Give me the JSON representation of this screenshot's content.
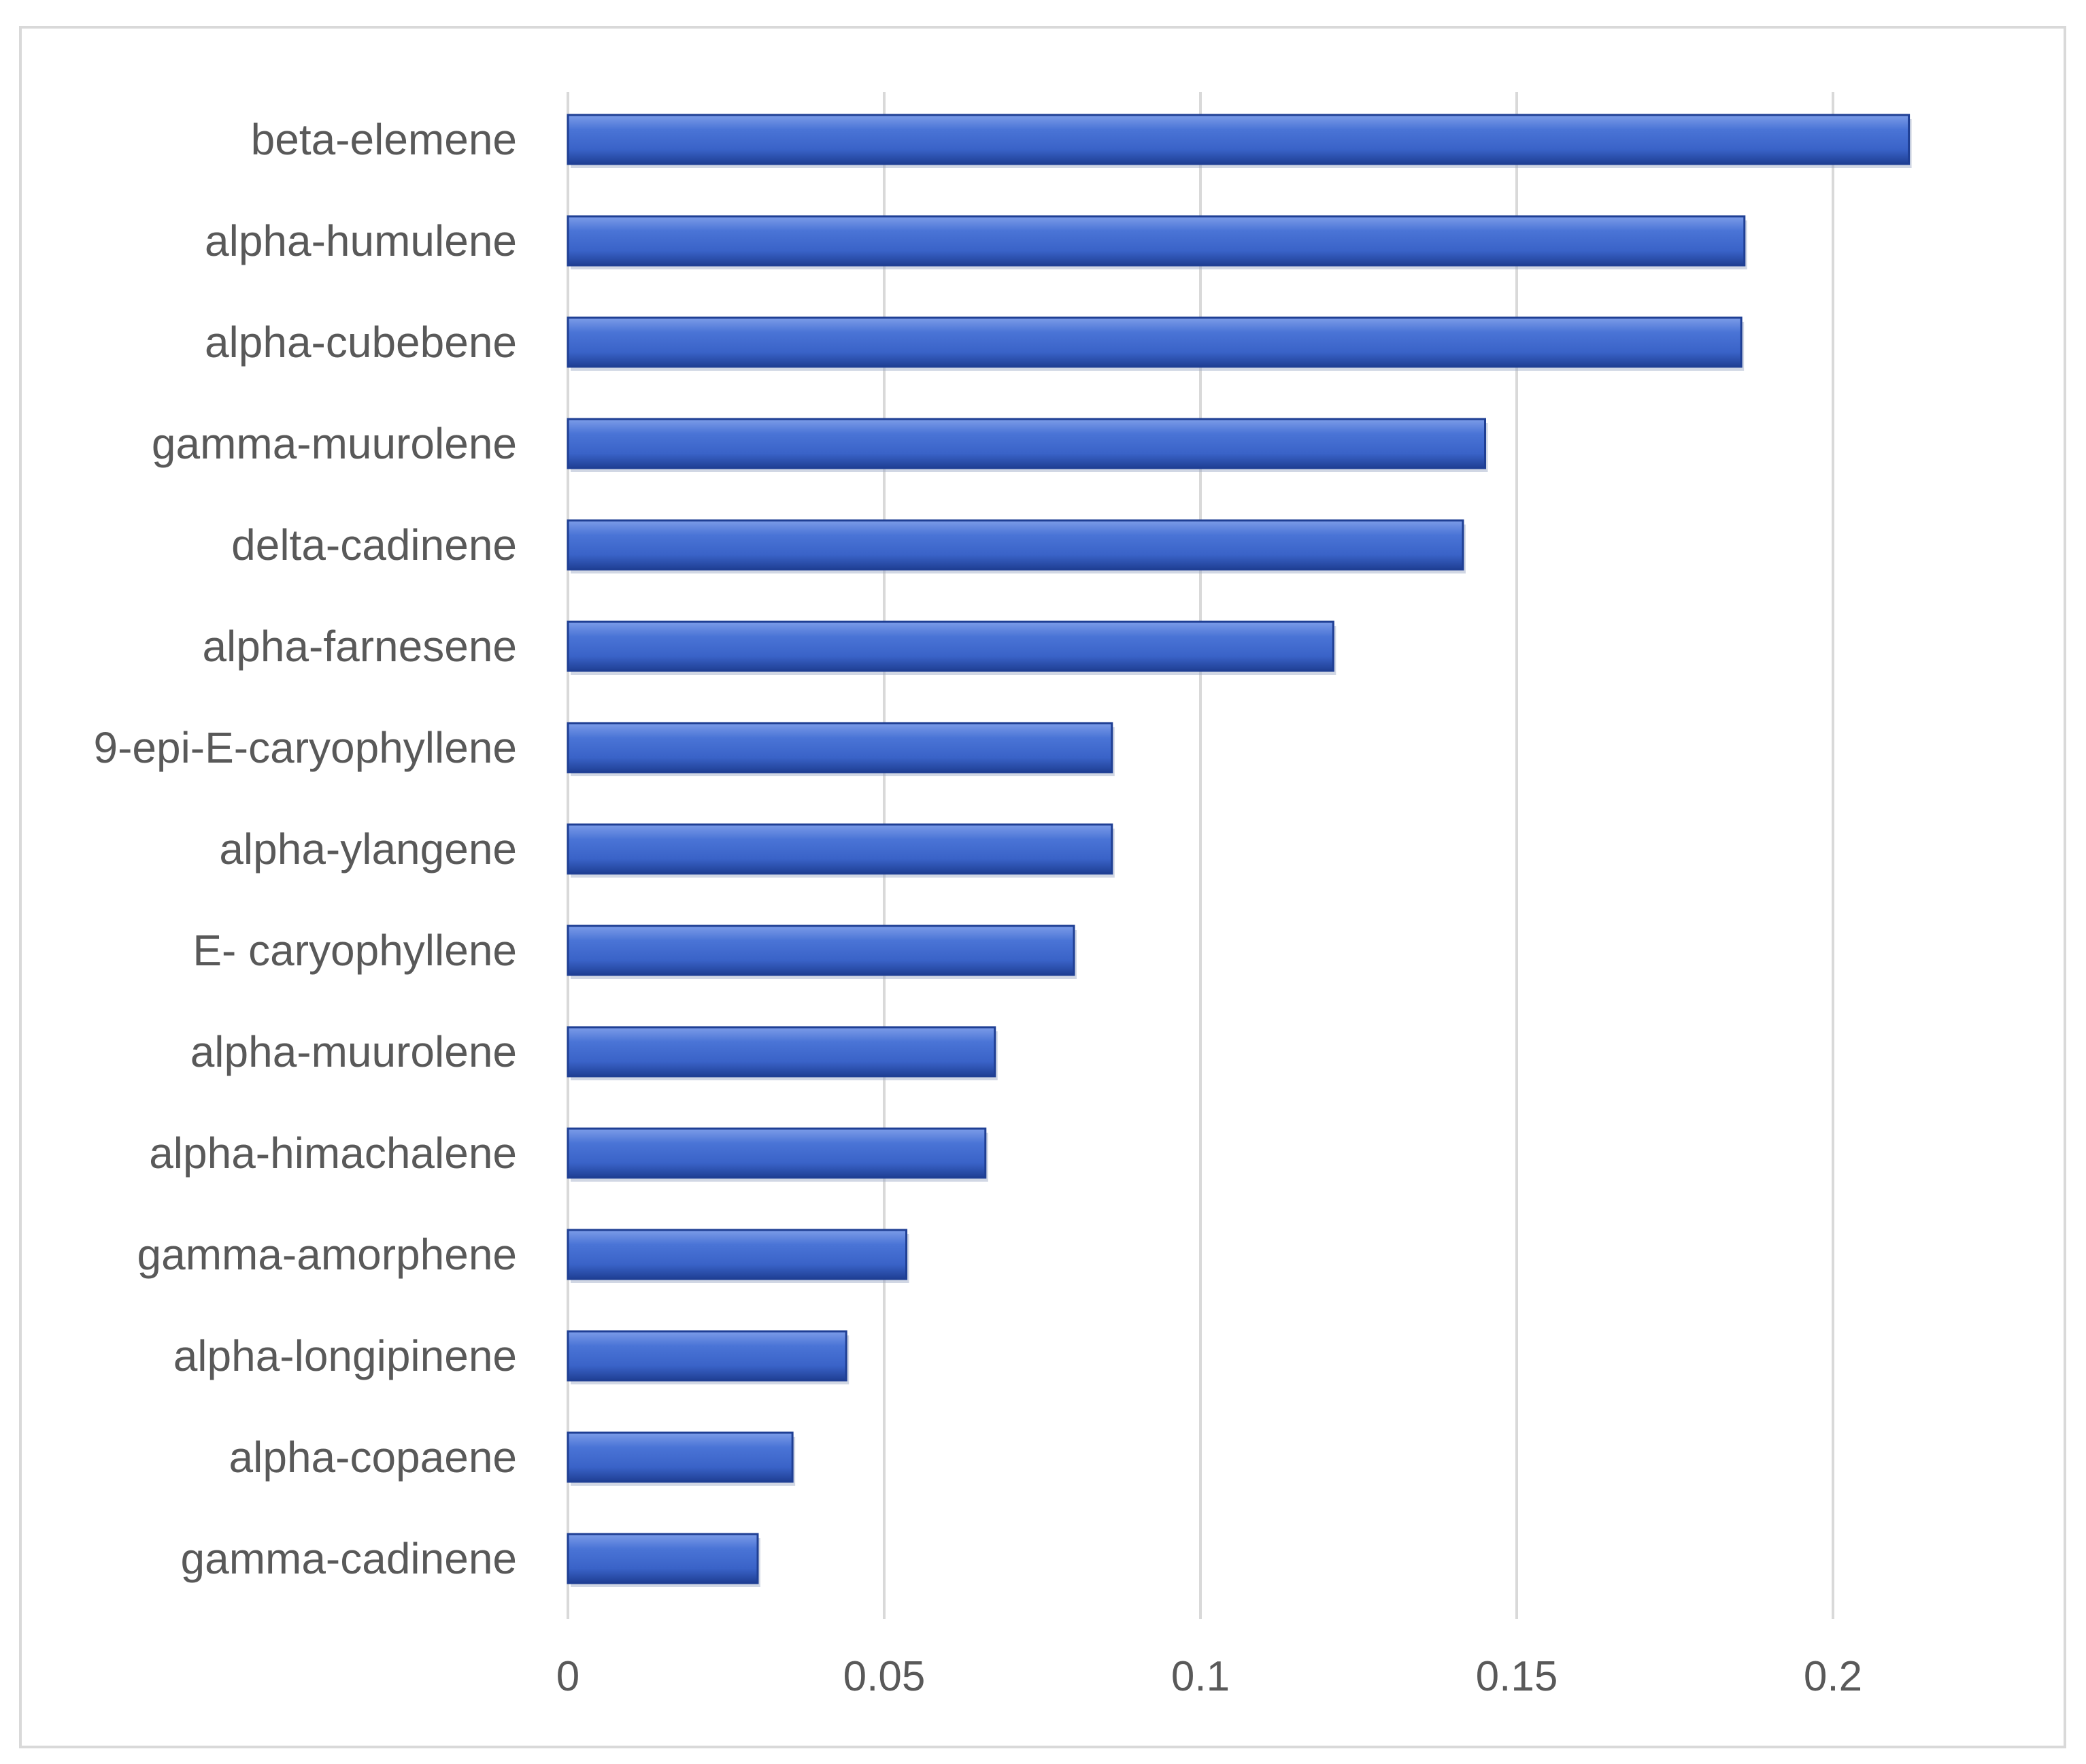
{
  "chart_data": {
    "type": "bar",
    "orientation": "horizontal",
    "title": "",
    "xlabel": "",
    "ylabel": "",
    "categories": [
      "beta-elemene",
      "alpha-humulene",
      "alpha-cubebene",
      "gamma-muurolene",
      "delta-cadinene",
      "alpha-farnesene",
      "9-epi-E-caryophyllene",
      "alpha-ylangene",
      "E- caryophyllene",
      "alpha-muurolene",
      "alpha-himachalene",
      "gamma-amorphene",
      "alpha-longipinene",
      "alpha-copaene",
      "gamma-cadinene"
    ],
    "values": [
      0.212,
      0.186,
      0.1855,
      0.145,
      0.1415,
      0.121,
      0.086,
      0.086,
      0.08,
      0.0675,
      0.066,
      0.0535,
      0.044,
      0.0355,
      0.03
    ],
    "xlim": [
      0,
      0.2
    ],
    "xticks": [
      0,
      0.05,
      0.1,
      0.15,
      0.2
    ],
    "xtick_labels": [
      "0",
      "0.05",
      "0.1",
      "0.15",
      "0.2"
    ],
    "grid": true,
    "legend": "none",
    "bar_color": "#3a63c8",
    "bar_dark": "#1f3f94",
    "bar_light": "#7c9ce8",
    "grid_color": "#d9d9d9",
    "text_color": "#595959"
  }
}
